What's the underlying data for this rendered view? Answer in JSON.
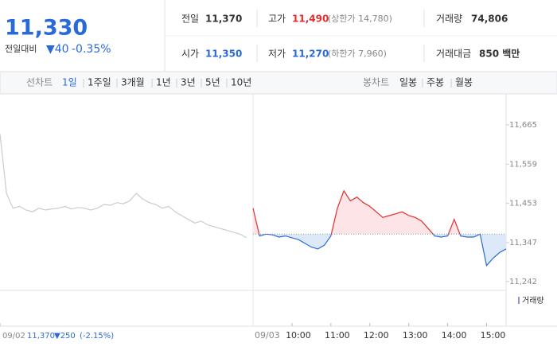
{
  "header": {
    "price": "11,330",
    "change_label": "전일대비",
    "change": "▼40",
    "change_pct": "-0.35%",
    "stats": [
      {
        "label": "전일",
        "value": "11,370"
      },
      {
        "label": "고가",
        "value": "11,490",
        "note": "(상한가 14,780)"
      },
      {
        "label": "거래량",
        "value": "74,806"
      },
      {
        "label": "시가",
        "value": "11,350"
      },
      {
        "label": "저가",
        "value": "11,270",
        "note": "(하한가 7,960)"
      },
      {
        "label": "거래대금",
        "value": "850 백만"
      }
    ]
  },
  "tabs": {
    "line_label": "선차트",
    "line_periods": [
      "1일",
      "1주일",
      "3개월",
      "1년",
      "3년",
      "5년",
      "10년"
    ],
    "candle_label": "봉차트",
    "candle_periods": [
      "일봉",
      "주봉",
      "월봉"
    ]
  },
  "chart_data": {
    "type": "line",
    "baseline": 11370,
    "xlim": [
      -390,
      390
    ],
    "ylim": [
      11218,
      11723
    ],
    "xticks": [
      {
        "value": -390,
        "label": "09/02"
      },
      {
        "value": 0,
        "label": "09/03"
      },
      {
        "value": 60,
        "label": "10:00"
      },
      {
        "value": 120,
        "label": "11:00"
      },
      {
        "value": 180,
        "label": "12:00"
      },
      {
        "value": 240,
        "label": "13:00"
      },
      {
        "value": 300,
        "label": "14:00"
      },
      {
        "value": 360,
        "label": "15:00"
      }
    ],
    "yticks": [
      {
        "value": 11665,
        "label": "11,665"
      },
      {
        "value": 11559,
        "label": "11,559"
      },
      {
        "value": 11453,
        "label": "11,453"
      },
      {
        "value": 11347,
        "label": "11,347"
      },
      {
        "value": 11242,
        "label": "11,242"
      }
    ],
    "series": [
      {
        "color": "#cccccc",
        "x": [
          -390,
          -380,
          -370,
          -360,
          -350,
          -340,
          -330,
          -320,
          -310,
          -300,
          -290,
          -280,
          -270,
          -260,
          -250,
          -240,
          -230,
          -220,
          -210,
          -200,
          -190,
          -180,
          -170,
          -160,
          -150,
          -140,
          -130,
          -120,
          -110,
          -100,
          -90,
          -80,
          -70,
          -60,
          -50,
          -40,
          -30,
          -20,
          -10
        ],
        "values": [
          11640,
          11480,
          11440,
          11445,
          11435,
          11430,
          11440,
          11435,
          11438,
          11440,
          11445,
          11438,
          11442,
          11440,
          11435,
          11440,
          11450,
          11448,
          11455,
          11452,
          11460,
          11480,
          11465,
          11455,
          11450,
          11440,
          11445,
          11430,
          11420,
          11410,
          11400,
          11405,
          11395,
          11390,
          11385,
          11380,
          11375,
          11370,
          11360
        ]
      },
      {
        "up_color": "#e52d2d",
        "down_color": "#2a6ad8",
        "x": [
          0,
          10,
          20,
          30,
          40,
          50,
          60,
          70,
          80,
          90,
          100,
          110,
          120,
          130,
          140,
          150,
          160,
          170,
          180,
          190,
          200,
          210,
          220,
          230,
          240,
          250,
          260,
          270,
          280,
          290,
          300,
          310,
          320,
          330,
          340,
          350,
          360,
          370,
          380,
          390
        ],
        "values": [
          11440,
          11365,
          11370,
          11368,
          11362,
          11365,
          11360,
          11355,
          11345,
          11335,
          11330,
          11340,
          11365,
          11440,
          11487,
          11460,
          11470,
          11455,
          11445,
          11430,
          11415,
          11420,
          11425,
          11430,
          11420,
          11415,
          11405,
          11385,
          11365,
          11362,
          11365,
          11410,
          11365,
          11362,
          11362,
          11370,
          11285,
          11305,
          11320,
          11330
        ]
      }
    ],
    "volume_label": "거래량",
    "footer": {
      "date": "09/02",
      "price": "11,370",
      "change": "▼250",
      "change_pct": "(-2.15%)"
    }
  }
}
